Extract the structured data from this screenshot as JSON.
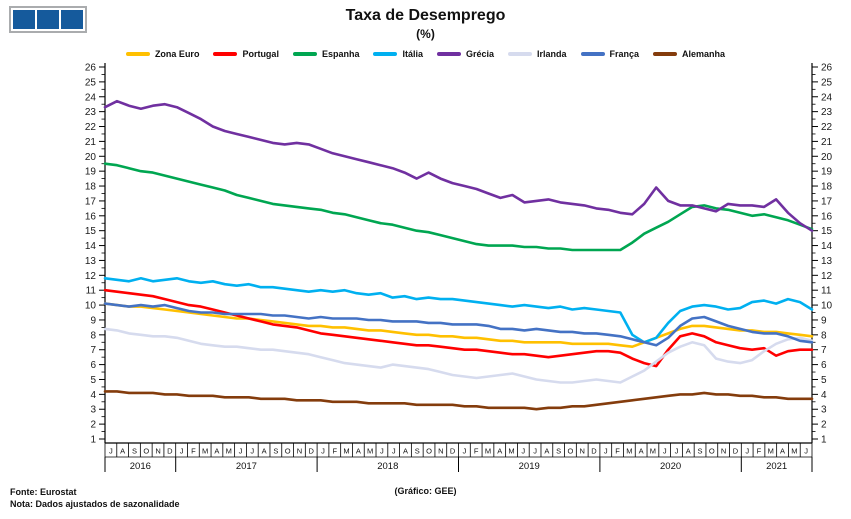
{
  "title": "Taxa de Desemprego",
  "subtitle": "(%)",
  "logo": {
    "icon": "three-squares-logo",
    "square_color": "#155A9C",
    "square_count": 3
  },
  "footer": {
    "source": "Fonte: Eurostat",
    "note": "Nota: Dados ajustados de sazonalidade",
    "credit": "(Gráfico: GEE)"
  },
  "chart_data": {
    "type": "line",
    "title": "Taxa de Desemprego (%)",
    "ylim": [
      1,
      26
    ],
    "y_tick_step": 1,
    "axis_sides": [
      "left",
      "right"
    ],
    "grid": false,
    "legend_position": "top",
    "x_months": [
      "J",
      "A",
      "S",
      "O",
      "N",
      "D",
      "J",
      "F",
      "M",
      "A",
      "M",
      "J",
      "J",
      "A",
      "S",
      "O",
      "N",
      "D",
      "J",
      "F",
      "M",
      "A",
      "M",
      "J",
      "J",
      "A",
      "S",
      "O",
      "N",
      "D",
      "J",
      "F",
      "M",
      "A",
      "M",
      "J",
      "J",
      "A",
      "S",
      "O",
      "N",
      "D",
      "J",
      "F",
      "M",
      "A",
      "M",
      "J",
      "J",
      "A",
      "S",
      "O",
      "N",
      "D",
      "J",
      "F",
      "M",
      "A",
      "M",
      "J"
    ],
    "years": [
      {
        "label": "2016",
        "months": 6
      },
      {
        "label": "2017",
        "months": 12
      },
      {
        "label": "2018",
        "months": 12
      },
      {
        "label": "2019",
        "months": 12
      },
      {
        "label": "2020",
        "months": 12
      },
      {
        "label": "2021",
        "months": 6
      }
    ],
    "series": [
      {
        "name": "Zona Euro",
        "color": "#FFC000",
        "values": [
          10.1,
          10.0,
          9.9,
          9.9,
          9.8,
          9.7,
          9.6,
          9.5,
          9.4,
          9.3,
          9.2,
          9.1,
          9.1,
          9.0,
          8.9,
          8.8,
          8.7,
          8.6,
          8.6,
          8.5,
          8.5,
          8.4,
          8.3,
          8.3,
          8.2,
          8.1,
          8.0,
          8.0,
          7.9,
          7.9,
          7.8,
          7.8,
          7.7,
          7.6,
          7.6,
          7.5,
          7.5,
          7.5,
          7.5,
          7.4,
          7.4,
          7.4,
          7.4,
          7.3,
          7.2,
          7.5,
          7.8,
          8.1,
          8.4,
          8.6,
          8.6,
          8.5,
          8.4,
          8.3,
          8.3,
          8.2,
          8.2,
          8.1,
          8.0,
          7.9
        ]
      },
      {
        "name": "Portugal",
        "color": "#FF0000",
        "values": [
          11.0,
          10.9,
          10.8,
          10.7,
          10.6,
          10.4,
          10.2,
          10.0,
          9.9,
          9.7,
          9.5,
          9.3,
          9.1,
          8.9,
          8.7,
          8.6,
          8.5,
          8.3,
          8.1,
          8.0,
          7.9,
          7.8,
          7.7,
          7.6,
          7.5,
          7.4,
          7.3,
          7.3,
          7.2,
          7.1,
          7.0,
          7.0,
          6.9,
          6.8,
          6.7,
          6.7,
          6.6,
          6.5,
          6.6,
          6.7,
          6.8,
          6.9,
          6.9,
          6.8,
          6.4,
          6.1,
          5.9,
          7.0,
          7.9,
          8.1,
          7.9,
          7.5,
          7.3,
          7.1,
          7.0,
          7.1,
          6.6,
          6.9,
          7.0,
          7.0
        ]
      },
      {
        "name": "Espanha",
        "color": "#00A651",
        "values": [
          19.5,
          19.4,
          19.2,
          19.0,
          18.9,
          18.7,
          18.5,
          18.3,
          18.1,
          17.9,
          17.7,
          17.4,
          17.2,
          17.0,
          16.8,
          16.7,
          16.6,
          16.5,
          16.4,
          16.2,
          16.1,
          15.9,
          15.7,
          15.5,
          15.4,
          15.2,
          15.0,
          14.9,
          14.7,
          14.5,
          14.3,
          14.1,
          14.0,
          14.0,
          14.0,
          13.9,
          13.9,
          13.8,
          13.8,
          13.7,
          13.7,
          13.7,
          13.7,
          13.7,
          14.2,
          14.8,
          15.2,
          15.6,
          16.1,
          16.6,
          16.7,
          16.5,
          16.4,
          16.2,
          16.0,
          16.1,
          15.9,
          15.7,
          15.4,
          15.1
        ]
      },
      {
        "name": "Itália",
        "color": "#00B0F0",
        "values": [
          11.8,
          11.7,
          11.6,
          11.8,
          11.6,
          11.7,
          11.8,
          11.6,
          11.5,
          11.6,
          11.4,
          11.3,
          11.4,
          11.2,
          11.2,
          11.1,
          11.0,
          10.9,
          11.0,
          10.9,
          11.0,
          10.8,
          10.7,
          10.8,
          10.5,
          10.6,
          10.4,
          10.5,
          10.4,
          10.4,
          10.3,
          10.2,
          10.1,
          10.0,
          9.9,
          10.0,
          9.9,
          9.8,
          9.9,
          9.7,
          9.8,
          9.7,
          9.6,
          9.5,
          8.0,
          7.5,
          7.8,
          8.8,
          9.6,
          9.9,
          10.0,
          9.9,
          9.7,
          9.8,
          10.2,
          10.3,
          10.1,
          10.4,
          10.2,
          9.7
        ]
      },
      {
        "name": "Grécia",
        "color": "#7030A0",
        "values": [
          23.3,
          23.7,
          23.4,
          23.2,
          23.4,
          23.5,
          23.3,
          22.9,
          22.5,
          22.0,
          21.7,
          21.5,
          21.3,
          21.1,
          20.9,
          20.8,
          20.9,
          20.8,
          20.5,
          20.2,
          20.0,
          19.8,
          19.6,
          19.4,
          19.2,
          18.9,
          18.5,
          18.9,
          18.5,
          18.2,
          18.0,
          17.8,
          17.5,
          17.2,
          17.4,
          16.9,
          17.0,
          17.1,
          16.9,
          16.8,
          16.7,
          16.5,
          16.4,
          16.2,
          16.1,
          16.8,
          17.9,
          17.0,
          16.7,
          16.7,
          16.5,
          16.3,
          16.8,
          16.7,
          16.7,
          16.6,
          17.1,
          16.2,
          15.5,
          15.0
        ]
      },
      {
        "name": "Irlanda",
        "color": "#D6DBEE",
        "values": [
          8.4,
          8.3,
          8.1,
          8.0,
          7.9,
          7.9,
          7.8,
          7.6,
          7.4,
          7.3,
          7.2,
          7.2,
          7.1,
          7.0,
          7.0,
          6.9,
          6.8,
          6.7,
          6.5,
          6.3,
          6.1,
          6.0,
          5.9,
          5.8,
          6.0,
          5.9,
          5.8,
          5.7,
          5.5,
          5.3,
          5.2,
          5.1,
          5.2,
          5.3,
          5.4,
          5.2,
          5.0,
          4.9,
          4.8,
          4.8,
          4.9,
          5.0,
          4.9,
          4.8,
          5.2,
          5.6,
          6.2,
          6.8,
          7.2,
          7.5,
          7.3,
          6.4,
          6.2,
          6.1,
          6.3,
          6.9,
          7.4,
          7.7,
          7.8,
          7.6
        ]
      },
      {
        "name": "França",
        "color": "#4472C4",
        "values": [
          10.1,
          10.0,
          9.9,
          10.0,
          9.9,
          10.0,
          9.8,
          9.6,
          9.5,
          9.5,
          9.4,
          9.4,
          9.4,
          9.4,
          9.3,
          9.3,
          9.2,
          9.1,
          9.2,
          9.1,
          9.1,
          9.1,
          9.0,
          9.0,
          8.9,
          8.9,
          8.9,
          8.8,
          8.8,
          8.7,
          8.7,
          8.7,
          8.6,
          8.4,
          8.4,
          8.3,
          8.4,
          8.3,
          8.2,
          8.2,
          8.1,
          8.1,
          8.0,
          7.9,
          7.7,
          7.5,
          7.3,
          7.8,
          8.6,
          9.1,
          9.2,
          8.9,
          8.6,
          8.4,
          8.2,
          8.1,
          8.1,
          7.9,
          7.6,
          7.5
        ]
      },
      {
        "name": "Alemanha",
        "color": "#843C0C",
        "values": [
          4.2,
          4.2,
          4.1,
          4.1,
          4.1,
          4.0,
          4.0,
          3.9,
          3.9,
          3.9,
          3.8,
          3.8,
          3.8,
          3.7,
          3.7,
          3.7,
          3.6,
          3.6,
          3.6,
          3.5,
          3.5,
          3.5,
          3.4,
          3.4,
          3.4,
          3.4,
          3.3,
          3.3,
          3.3,
          3.3,
          3.2,
          3.2,
          3.1,
          3.1,
          3.1,
          3.1,
          3.0,
          3.1,
          3.1,
          3.2,
          3.2,
          3.3,
          3.4,
          3.5,
          3.6,
          3.7,
          3.8,
          3.9,
          4.0,
          4.0,
          4.1,
          4.0,
          4.0,
          3.9,
          3.9,
          3.8,
          3.8,
          3.7,
          3.7,
          3.7
        ]
      }
    ]
  }
}
